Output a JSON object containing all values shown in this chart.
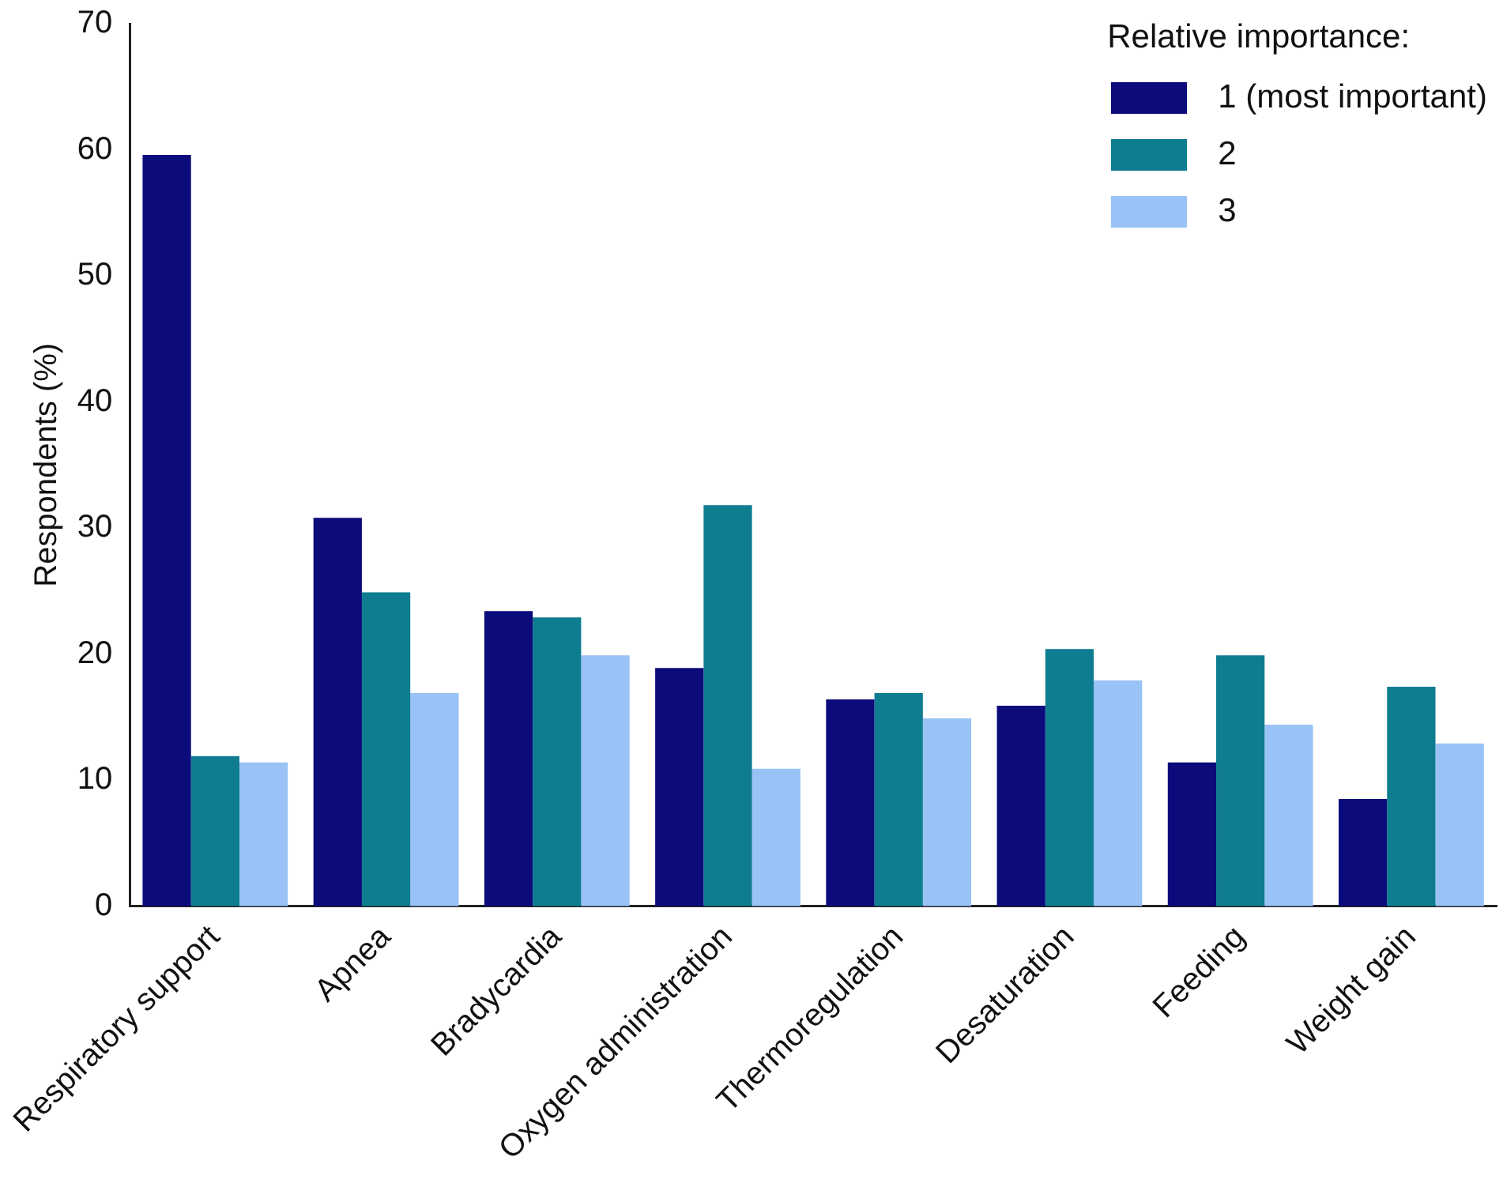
{
  "chart_data": {
    "type": "bar",
    "ylabel": "Respondents (%)",
    "legend_title": "Relative importance:",
    "legend": "top right",
    "grid": false,
    "categories": [
      "Respiratory support",
      "Apnea",
      "Bradycardia",
      "Oxygen administration",
      "Thermoregulation",
      "Desaturation",
      "Feeding",
      "Weight gain"
    ],
    "ylim": [
      0,
      70
    ],
    "yticks": [
      0,
      10,
      20,
      30,
      40,
      50,
      60,
      70
    ],
    "series": [
      {
        "name": "1 (most important)",
        "color": "#0b0b7c",
        "values": [
          59.6,
          30.8,
          23.4,
          18.9,
          16.4,
          15.9,
          11.4,
          8.5
        ]
      },
      {
        "name": "2",
        "color": "#0e7d90",
        "values": [
          11.9,
          24.9,
          22.9,
          31.8,
          16.9,
          20.4,
          19.9,
          17.4
        ]
      },
      {
        "name": "3",
        "color": "#99c2f6",
        "values": [
          11.4,
          16.9,
          19.9,
          10.9,
          14.9,
          17.9,
          14.4,
          12.9
        ]
      }
    ]
  }
}
